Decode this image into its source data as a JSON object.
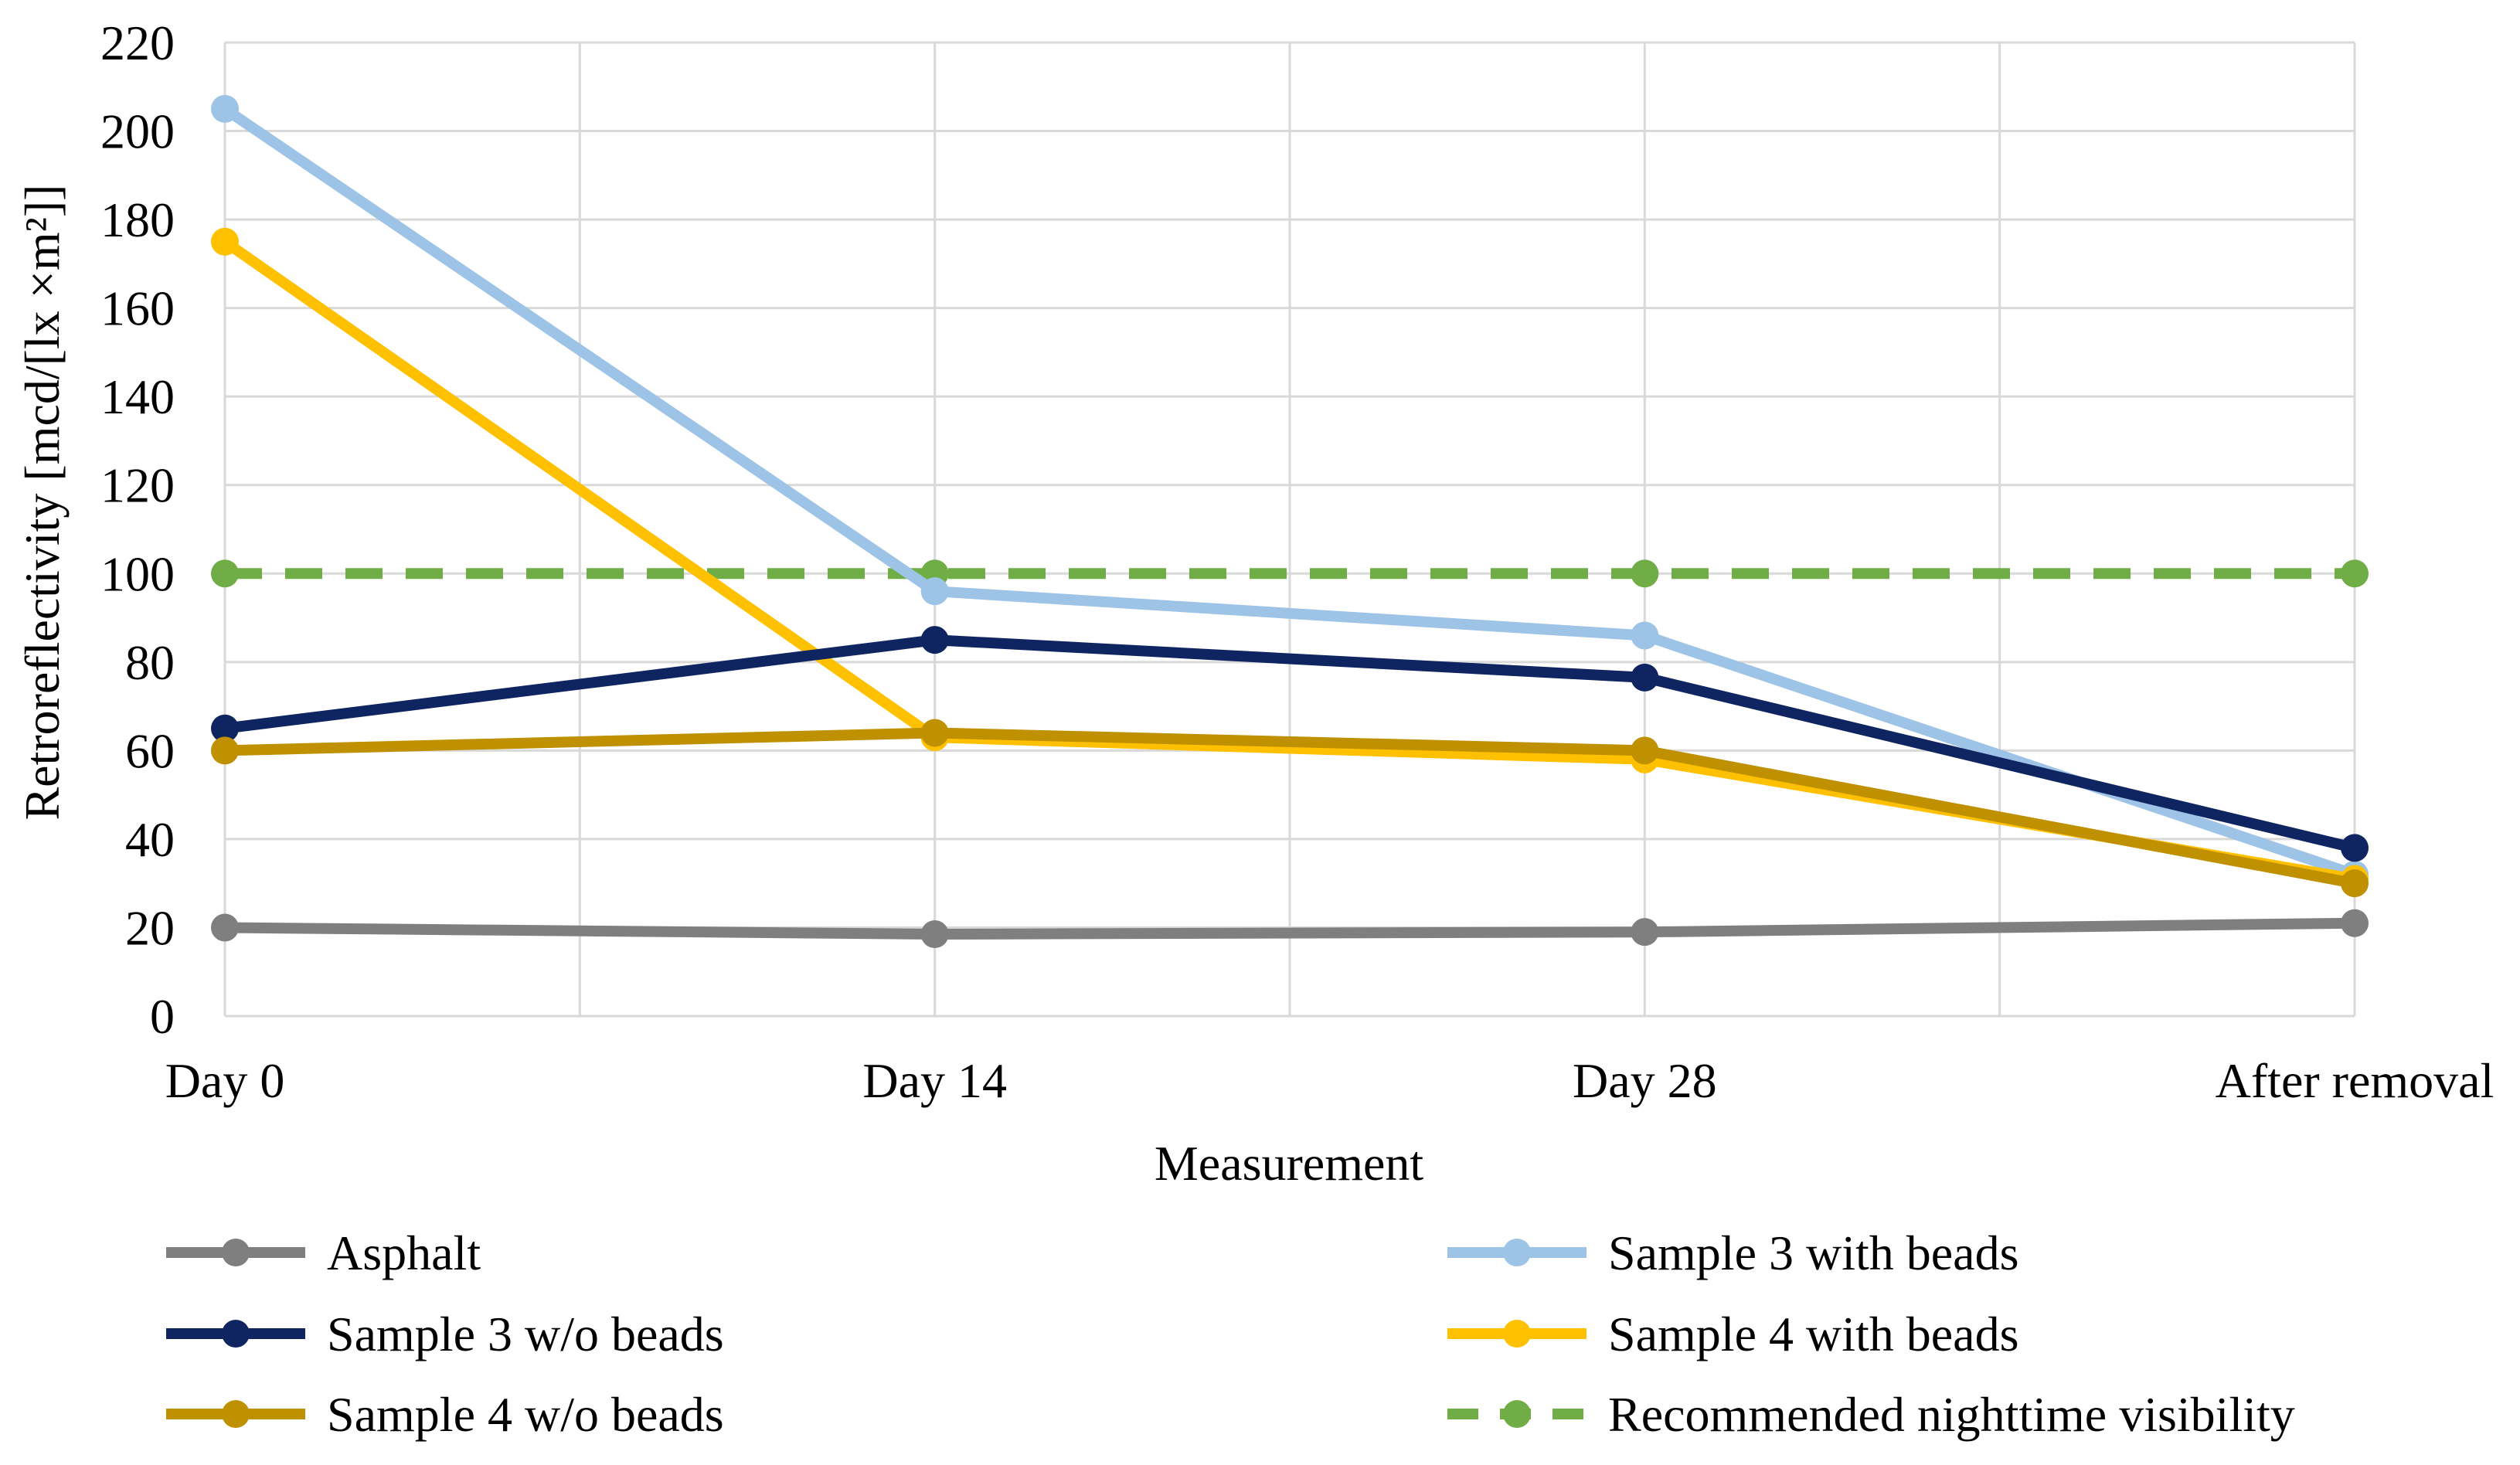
{
  "chart_data": {
    "type": "line",
    "title": "",
    "xlabel": "Measurement",
    "ylabel": "Retroreflectivity [mcd/[lx ×m²]]",
    "categories": [
      "Day 0",
      "Day 14",
      "Day 28",
      "After removal"
    ],
    "ylim": [
      0,
      220
    ],
    "yticks": [
      0,
      20,
      40,
      60,
      80,
      100,
      120,
      140,
      160,
      180,
      200,
      220
    ],
    "grid": true,
    "legend_position": "bottom",
    "series": [
      {
        "name": "Asphalt",
        "color": "#7f7f7f",
        "dashed": false,
        "values": [
          20,
          18.5,
          19,
          21
        ]
      },
      {
        "name": "Sample 3 with beads",
        "color": "#9dc3e6",
        "dashed": false,
        "values": [
          205,
          96,
          86,
          32
        ]
      },
      {
        "name": "Sample 3 w/o beads",
        "color": "#0e2562",
        "dashed": false,
        "values": [
          65,
          85,
          76.5,
          38
        ]
      },
      {
        "name": "Sample 4 with beads",
        "color": "#ffc000",
        "dashed": false,
        "values": [
          175,
          63,
          58,
          31
        ]
      },
      {
        "name": "Sample 4 w/o beads",
        "color": "#bf9000",
        "dashed": false,
        "values": [
          60,
          64,
          60,
          30
        ]
      },
      {
        "name": "Recommended nighttime visibility",
        "color": "#70ad47",
        "dashed": true,
        "values": [
          100,
          100,
          100,
          100
        ]
      }
    ]
  }
}
